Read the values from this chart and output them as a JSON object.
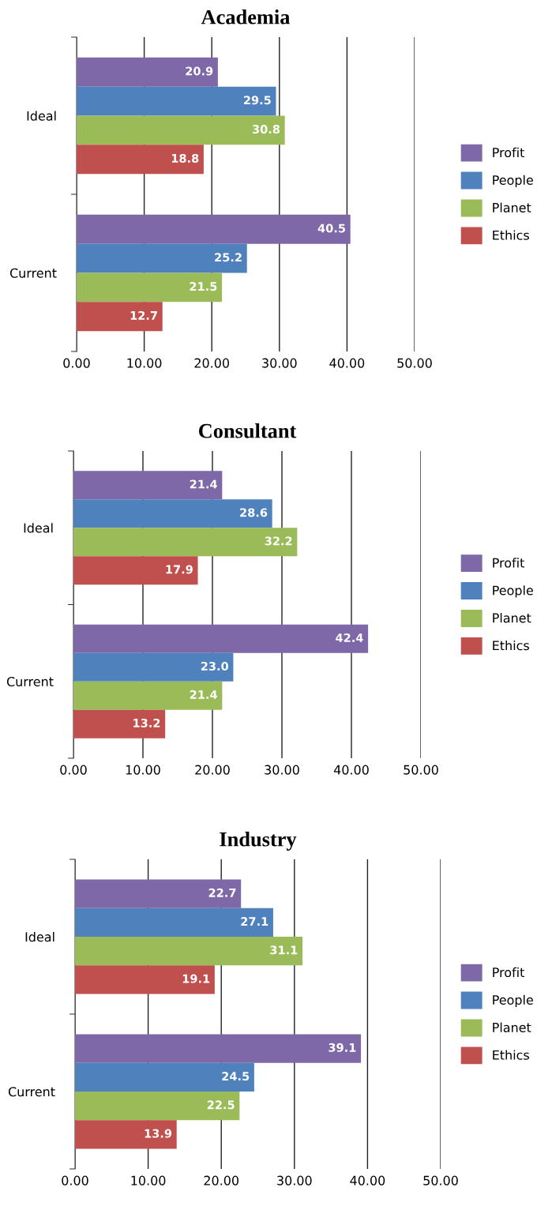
{
  "chart_data": [
    {
      "type": "bar",
      "orientation": "horizontal",
      "title": "Academia",
      "categories": [
        "Ideal",
        "Current"
      ],
      "series": [
        {
          "name": "Profit",
          "color": "#7e68a8",
          "values": [
            20.9,
            40.5
          ],
          "value_labels": [
            "20.9",
            "40.5"
          ]
        },
        {
          "name": "People",
          "color": "#4f81bd",
          "values": [
            29.5,
            25.2
          ],
          "value_labels": [
            "29.5",
            "25.2"
          ]
        },
        {
          "name": "Planet",
          "color": "#9bbb59",
          "values": [
            30.8,
            21.5
          ],
          "value_labels": [
            "30.8",
            "21.5"
          ]
        },
        {
          "name": "Ethics",
          "color": "#c0504d",
          "values": [
            18.8,
            12.7
          ],
          "value_labels": [
            "18.8",
            "12.7"
          ]
        }
      ],
      "xlim": [
        0,
        50
      ],
      "xticks": [
        {
          "value": 0,
          "label": "0.00"
        },
        {
          "value": 10,
          "label": "10.00"
        },
        {
          "value": 20,
          "label": "20.00"
        },
        {
          "value": 30,
          "label": "30.00"
        },
        {
          "value": 40,
          "label": "40.00"
        },
        {
          "value": 50,
          "label": "50.00"
        }
      ],
      "grid": "x",
      "legend": "right"
    },
    {
      "type": "bar",
      "orientation": "horizontal",
      "title": "Consultant",
      "categories": [
        "Ideal",
        "Current"
      ],
      "series": [
        {
          "name": "Profit",
          "color": "#7e68a8",
          "values": [
            21.4,
            42.4
          ],
          "value_labels": [
            "21.4",
            "42.4"
          ]
        },
        {
          "name": "People",
          "color": "#4f81bd",
          "values": [
            28.6,
            23.0
          ],
          "value_labels": [
            "28.6",
            "23.0"
          ]
        },
        {
          "name": "Planet",
          "color": "#9bbb59",
          "values": [
            32.2,
            21.4
          ],
          "value_labels": [
            "32.2",
            "21.4"
          ]
        },
        {
          "name": "Ethics",
          "color": "#c0504d",
          "values": [
            17.9,
            13.2
          ],
          "value_labels": [
            "17.9",
            "13.2"
          ]
        }
      ],
      "xlim": [
        0,
        50
      ],
      "xticks": [
        {
          "value": 0,
          "label": "0.00"
        },
        {
          "value": 10,
          "label": "10.00"
        },
        {
          "value": 20,
          "label": "20.00"
        },
        {
          "value": 30,
          "label": "30.00"
        },
        {
          "value": 40,
          "label": "40.00"
        },
        {
          "value": 50,
          "label": "50.00"
        }
      ],
      "grid": "x",
      "legend": "right"
    },
    {
      "type": "bar",
      "orientation": "horizontal",
      "title": "Industry",
      "categories": [
        "Ideal",
        "Current"
      ],
      "series": [
        {
          "name": "Profit",
          "color": "#7e68a8",
          "values": [
            22.7,
            39.1
          ],
          "value_labels": [
            "22.7",
            "39.1"
          ]
        },
        {
          "name": "People",
          "color": "#4f81bd",
          "values": [
            27.1,
            24.5
          ],
          "value_labels": [
            "27.1",
            "24.5"
          ]
        },
        {
          "name": "Planet",
          "color": "#9bbb59",
          "values": [
            31.1,
            22.5
          ],
          "value_labels": [
            "31.1",
            "22.5"
          ]
        },
        {
          "name": "Ethics",
          "color": "#c0504d",
          "values": [
            19.1,
            13.9
          ],
          "value_labels": [
            "19.1",
            "13.9"
          ]
        }
      ],
      "xlim": [
        0,
        50
      ],
      "xticks": [
        {
          "value": 0,
          "label": "0.00"
        },
        {
          "value": 10,
          "label": "10.00"
        },
        {
          "value": 20,
          "label": "20.00"
        },
        {
          "value": 30,
          "label": "30.00"
        },
        {
          "value": 40,
          "label": "40.00"
        },
        {
          "value": 50,
          "label": "50.00"
        }
      ],
      "grid": "x",
      "legend": "right"
    }
  ]
}
